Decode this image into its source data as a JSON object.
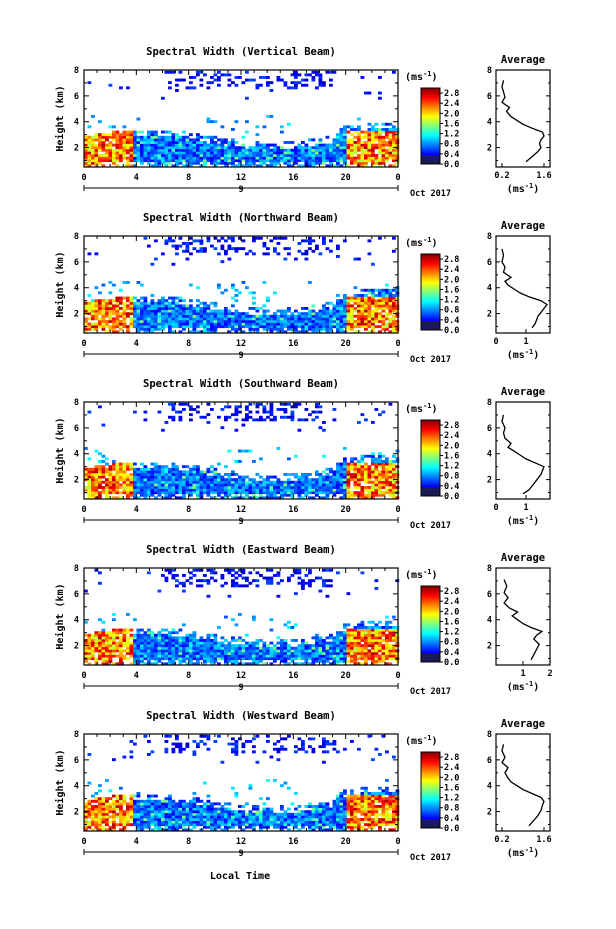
{
  "figure": {
    "xlabel": "Local Time",
    "date_label": "Oct 2017",
    "colorbar_unit": "(ms",
    "colorbar_unit_sup": "-1",
    "colorbar_unit_close": ")",
    "ylabel": "Height (km)",
    "profile_title": "Average"
  },
  "chart_data": [
    {
      "type": "heatmap",
      "title": "Spectral Width (Vertical Beam)",
      "ylabel": "Height (km)",
      "xlabel": "",
      "x_ticks": [
        "0",
        "4",
        "8",
        "12",
        "16",
        "20",
        "0"
      ],
      "x_ticks2": [
        "9"
      ],
      "y_ticks": [
        "2",
        "4",
        "6",
        "8"
      ],
      "xlim": [
        0,
        24
      ],
      "ylim": [
        0.5,
        8
      ],
      "colorbar": {
        "ticks": [
          "2.8",
          "2.4",
          "2.0",
          "1.6",
          "1.2",
          "0.8",
          "0.4",
          "0.0"
        ],
        "range": [
          0,
          3
        ]
      },
      "profile": {
        "title": "Average",
        "x_ticks": [
          "0.2",
          "1.6"
        ],
        "xlim": [
          0,
          1.8
        ],
        "ylim": [
          0.5,
          8
        ],
        "y_ticks": [
          "2",
          "4",
          "6",
          "8"
        ],
        "values": [
          [
            1.0,
            0.9
          ],
          [
            1.2,
            1.3
          ],
          [
            1.3,
            1.5
          ],
          [
            1.4,
            1.7
          ],
          [
            1.5,
            2.0
          ],
          [
            1.45,
            2.3
          ],
          [
            1.5,
            2.6
          ],
          [
            1.6,
            2.9
          ],
          [
            1.55,
            3.2
          ],
          [
            1.2,
            3.5
          ],
          [
            0.9,
            3.8
          ],
          [
            0.7,
            4.1
          ],
          [
            0.5,
            4.4
          ],
          [
            0.35,
            4.8
          ],
          [
            0.45,
            5.1
          ],
          [
            0.2,
            5.5
          ],
          [
            0.3,
            5.9
          ],
          [
            0.25,
            6.3
          ],
          [
            0.2,
            6.7
          ],
          [
            0.25,
            7.2
          ]
        ]
      }
    },
    {
      "type": "heatmap",
      "title": "Spectral Width (Northward Beam)",
      "ylabel": "Height (km)",
      "xlabel": "",
      "x_ticks": [
        "0",
        "4",
        "8",
        "12",
        "16",
        "20",
        "0"
      ],
      "x_ticks2": [
        "9"
      ],
      "y_ticks": [
        "2",
        "4",
        "6",
        "8"
      ],
      "xlim": [
        0,
        24
      ],
      "ylim": [
        0.5,
        8
      ],
      "colorbar": {
        "ticks": [
          "2.8",
          "2.4",
          "2.0",
          "1.6",
          "1.2",
          "0.8",
          "0.4",
          "0.0"
        ],
        "range": [
          0,
          3
        ]
      },
      "profile": {
        "title": "Average",
        "x_ticks": [
          "0",
          "1"
        ],
        "xlim": [
          0,
          1.8
        ],
        "ylim": [
          0.5,
          8
        ],
        "y_ticks": [
          "2",
          "4",
          "6",
          "8"
        ],
        "values": [
          [
            1.2,
            0.9
          ],
          [
            1.3,
            1.2
          ],
          [
            1.35,
            1.5
          ],
          [
            1.4,
            1.8
          ],
          [
            1.5,
            2.1
          ],
          [
            1.6,
            2.4
          ],
          [
            1.7,
            2.7
          ],
          [
            1.5,
            3.0
          ],
          [
            1.1,
            3.3
          ],
          [
            0.8,
            3.6
          ],
          [
            0.6,
            3.9
          ],
          [
            0.4,
            4.2
          ],
          [
            0.3,
            4.5
          ],
          [
            0.5,
            4.8
          ],
          [
            0.25,
            5.2
          ],
          [
            0.3,
            5.6
          ],
          [
            0.2,
            6.0
          ],
          [
            0.25,
            6.5
          ],
          [
            0.2,
            7.0
          ]
        ]
      }
    },
    {
      "type": "heatmap",
      "title": "Spectral Width (Southward Beam)",
      "ylabel": "Height (km)",
      "xlabel": "",
      "x_ticks": [
        "0",
        "4",
        "8",
        "12",
        "16",
        "20",
        "0"
      ],
      "x_ticks2": [
        "9"
      ],
      "y_ticks": [
        "2",
        "4",
        "6",
        "8"
      ],
      "xlim": [
        0,
        24
      ],
      "ylim": [
        0.5,
        8
      ],
      "colorbar": {
        "ticks": [
          "2.8",
          "2.4",
          "2.0",
          "1.6",
          "1.2",
          "0.8",
          "0.4",
          "0.0"
        ],
        "range": [
          0,
          3
        ]
      },
      "profile": {
        "title": "Average",
        "x_ticks": [
          "0",
          "1"
        ],
        "xlim": [
          0,
          1.8
        ],
        "ylim": [
          0.5,
          8
        ],
        "y_ticks": [
          "2",
          "4",
          "6",
          "8"
        ],
        "values": [
          [
            0.9,
            0.9
          ],
          [
            1.1,
            1.2
          ],
          [
            1.2,
            1.5
          ],
          [
            1.3,
            1.8
          ],
          [
            1.4,
            2.1
          ],
          [
            1.5,
            2.4
          ],
          [
            1.55,
            2.7
          ],
          [
            1.6,
            3.0
          ],
          [
            1.3,
            3.3
          ],
          [
            1.0,
            3.6
          ],
          [
            0.8,
            3.9
          ],
          [
            0.6,
            4.2
          ],
          [
            0.4,
            4.5
          ],
          [
            0.5,
            4.8
          ],
          [
            0.3,
            5.2
          ],
          [
            0.25,
            5.6
          ],
          [
            0.3,
            6.0
          ],
          [
            0.2,
            6.5
          ],
          [
            0.25,
            7.0
          ]
        ]
      }
    },
    {
      "type": "heatmap",
      "title": "Spectral Width (Eastward Beam)",
      "ylabel": "Height (km)",
      "xlabel": "",
      "x_ticks": [
        "0",
        "4",
        "8",
        "12",
        "16",
        "20",
        "0"
      ],
      "x_ticks2": [
        "9"
      ],
      "y_ticks": [
        "2",
        "4",
        "6",
        "8"
      ],
      "xlim": [
        0,
        24
      ],
      "ylim": [
        0.5,
        8
      ],
      "colorbar": {
        "ticks": [
          "2.8",
          "2.4",
          "2.0",
          "1.6",
          "1.2",
          "0.8",
          "0.4",
          "0.0"
        ],
        "range": [
          0,
          3
        ]
      },
      "profile": {
        "title": "Average",
        "x_ticks": [
          "1",
          "2"
        ],
        "xlim": [
          0,
          2
        ],
        "ylim": [
          0.5,
          8
        ],
        "y_ticks": [
          "2",
          "4",
          "6",
          "8"
        ],
        "values": [
          [
            1.3,
            0.9
          ],
          [
            1.4,
            1.3
          ],
          [
            1.5,
            1.7
          ],
          [
            1.6,
            2.1
          ],
          [
            1.4,
            2.5
          ],
          [
            1.5,
            2.8
          ],
          [
            1.7,
            3.1
          ],
          [
            1.3,
            3.4
          ],
          [
            1.0,
            3.7
          ],
          [
            0.8,
            4.0
          ],
          [
            0.6,
            4.3
          ],
          [
            0.8,
            4.6
          ],
          [
            0.5,
            4.9
          ],
          [
            0.3,
            5.3
          ],
          [
            0.45,
            5.7
          ],
          [
            0.3,
            6.1
          ],
          [
            0.4,
            6.6
          ],
          [
            0.3,
            7.1
          ]
        ]
      }
    },
    {
      "type": "heatmap",
      "title": "Spectral Width (Westward Beam)",
      "ylabel": "Height (km)",
      "xlabel": "Local Time",
      "x_ticks": [
        "0",
        "4",
        "8",
        "12",
        "16",
        "20",
        "0"
      ],
      "x_ticks2": [
        "9"
      ],
      "y_ticks": [
        "2",
        "4",
        "6",
        "8"
      ],
      "xlim": [
        0,
        24
      ],
      "ylim": [
        0.5,
        8
      ],
      "colorbar": {
        "ticks": [
          "2.8",
          "2.4",
          "2.0",
          "1.6",
          "1.2",
          "0.8",
          "0.4",
          "0.0"
        ],
        "range": [
          0,
          3
        ]
      },
      "profile": {
        "title": "Average",
        "x_ticks": [
          "0.2",
          "1.6"
        ],
        "xlim": [
          0,
          1.8
        ],
        "ylim": [
          0.5,
          8
        ],
        "y_ticks": [
          "2",
          "4",
          "6",
          "8"
        ],
        "values": [
          [
            1.1,
            0.9
          ],
          [
            1.25,
            1.3
          ],
          [
            1.4,
            1.7
          ],
          [
            1.5,
            2.1
          ],
          [
            1.55,
            2.5
          ],
          [
            1.6,
            2.8
          ],
          [
            1.5,
            3.1
          ],
          [
            1.2,
            3.4
          ],
          [
            0.9,
            3.7
          ],
          [
            0.7,
            4.0
          ],
          [
            0.5,
            4.3
          ],
          [
            0.4,
            4.6
          ],
          [
            0.3,
            5.0
          ],
          [
            0.4,
            5.4
          ],
          [
            0.2,
            5.8
          ],
          [
            0.3,
            6.2
          ],
          [
            0.2,
            6.7
          ],
          [
            0.25,
            7.2
          ]
        ]
      }
    }
  ]
}
